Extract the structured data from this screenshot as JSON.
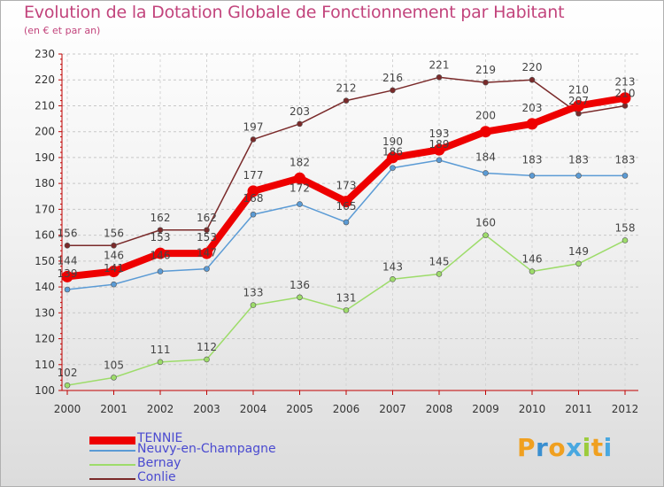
{
  "title": "Evolution de la Dotation Globale de Fonctionnement par Habitant",
  "subtitle": "(en € et par an)",
  "brand": {
    "text": "Proxiti",
    "letter_colors": [
      "#f0a020",
      "#3a8fd0",
      "#f0a020",
      "#49a8e0",
      "#9ccc3c",
      "#f0a020",
      "#49a8e0"
    ]
  },
  "chart_data": {
    "type": "line",
    "title": "Evolution de la Dotation Globale de Fonctionnement par Habitant",
    "subtitle": "(en € et par an)",
    "x": [
      "2000",
      "2001",
      "2002",
      "2003",
      "2004",
      "2005",
      "2006",
      "2007",
      "2008",
      "2009",
      "2010",
      "2011",
      "2012"
    ],
    "ylim": [
      100,
      230
    ],
    "yticks": [
      100,
      110,
      120,
      130,
      140,
      150,
      160,
      170,
      180,
      190,
      200,
      210,
      220,
      230
    ],
    "grid": "horizontal dashed",
    "legend_position": "bottom-left",
    "series": [
      {
        "name": "TENNIE",
        "color": "#ee0000",
        "values": [
          144,
          146,
          153,
          153,
          177,
          182,
          173,
          190,
          193,
          200,
          203,
          210,
          213
        ]
      },
      {
        "name": "Neuvy-en-Champagne",
        "color": "#5b9bd5",
        "values": [
          139,
          141,
          146,
          147,
          168,
          172,
          165,
          186,
          189,
          184,
          183,
          183,
          183
        ]
      },
      {
        "name": "Bernay",
        "color": "#9ddc6a",
        "values": [
          102,
          105,
          111,
          112,
          133,
          136,
          131,
          143,
          145,
          160,
          146,
          149,
          158
        ]
      },
      {
        "name": "Conlie",
        "color": "#7a2a2a",
        "values": [
          156,
          156,
          162,
          162,
          197,
          203,
          212,
          216,
          221,
          219,
          220,
          207,
          210
        ]
      }
    ]
  }
}
